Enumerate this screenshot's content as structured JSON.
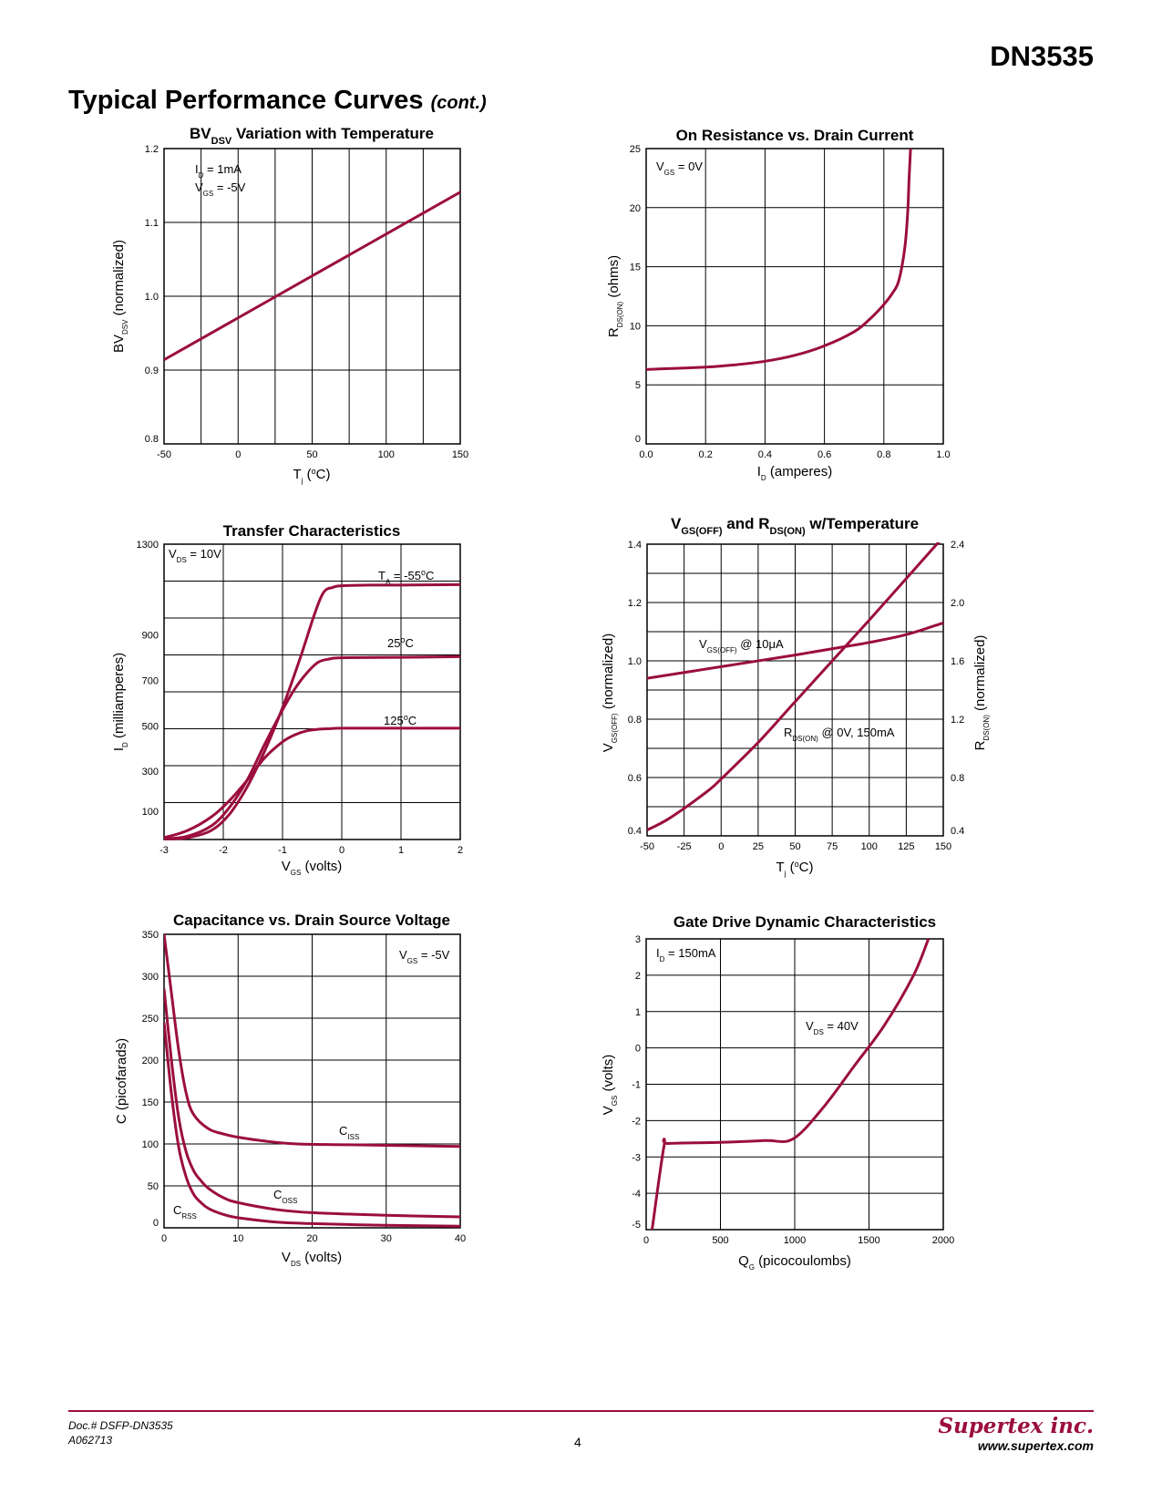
{
  "header": {
    "part_number": "DN3535",
    "section_title": "Typical Performance Curves",
    "section_suffix": "(cont.)"
  },
  "colors": {
    "curve": "#9b0e3e",
    "accent": "#9b0e3e"
  },
  "footer": {
    "doc_number": "Doc.# DSFP-DN3535",
    "revision": "A062713",
    "page": "4",
    "company": "Supertex inc.",
    "website": "www.supertex.com"
  },
  "chart_data": [
    {
      "type": "line",
      "title": "BVDSV Variation with Temperature",
      "xlabel": "Tj (°C)",
      "ylabel": "BVDSV (normalized)",
      "xlim": [
        -50,
        150
      ],
      "ylim": [
        0.8,
        1.2
      ],
      "xticks": [
        "-50",
        "0",
        "50",
        "100",
        "150"
      ],
      "yticks": [
        "0.8",
        "0.9",
        "1.0",
        "1.1",
        "1.2"
      ],
      "annotations": [
        "ID = 1mA",
        "VGS = -5V"
      ],
      "series": [
        {
          "x": [
            -50,
            150
          ],
          "y": [
            0.914,
            1.141
          ]
        }
      ]
    },
    {
      "type": "line",
      "title": "On Resistance vs. Drain Current",
      "xlabel": "ID (amperes)",
      "ylabel": "RDS(ON) (ohms)",
      "xlim": [
        0,
        1.0
      ],
      "ylim": [
        0,
        25
      ],
      "xticks": [
        "0.0",
        "0.2",
        "0.4",
        "0.6",
        "0.8",
        "1.0"
      ],
      "yticks": [
        "0",
        "5",
        "10",
        "15",
        "20",
        "25"
      ],
      "annotations": [
        "VGS = 0V"
      ],
      "series": [
        {
          "x": [
            0,
            0.1,
            0.2,
            0.3,
            0.4,
            0.5,
            0.6,
            0.7,
            0.75,
            0.8,
            0.83,
            0.85,
            0.87,
            0.88,
            0.885,
            0.89
          ],
          "y": [
            6.3,
            6.4,
            6.5,
            6.7,
            7.0,
            7.5,
            8.3,
            9.5,
            10.5,
            11.8,
            12.8,
            13.8,
            16.5,
            19.5,
            22.5,
            25
          ]
        }
      ]
    },
    {
      "type": "line",
      "title": "Transfer Characteristics",
      "xlabel": "VGS (volts)",
      "ylabel": "ID (milliamperes)",
      "xlim": [
        -3,
        2
      ],
      "ylim": [
        0,
        1300
      ],
      "xticks": [
        "-3",
        "-2",
        "-1",
        "0",
        "1",
        "2"
      ],
      "yticks": [
        "100",
        "300",
        "500",
        "700",
        "900",
        "1300"
      ],
      "annotations": [
        "VDS = 10V",
        "TA = -55°C",
        "25°C",
        "125°C"
      ],
      "series": [
        {
          "name": "TA = -55°C",
          "x": [
            -3,
            -2.6,
            -2.2,
            -1.9,
            -1.6,
            -1.3,
            -1.0,
            -0.7,
            -0.45,
            -0.3,
            -0.15,
            0,
            0.5,
            1,
            2
          ],
          "y": [
            2,
            8,
            40,
            110,
            230,
            390,
            580,
            800,
            1000,
            1090,
            1110,
            1117,
            1120,
            1120,
            1122
          ]
        },
        {
          "name": "25°C",
          "x": [
            -3,
            -2.6,
            -2.2,
            -1.9,
            -1.6,
            -1.3,
            -1.0,
            -0.8,
            -0.6,
            -0.4,
            -0.2,
            0,
            1,
            2
          ],
          "y": [
            2,
            15,
            60,
            140,
            260,
            420,
            570,
            660,
            730,
            780,
            795,
            800,
            802,
            805
          ]
        },
        {
          "name": "125°C",
          "x": [
            -3,
            -2.6,
            -2.2,
            -1.9,
            -1.6,
            -1.3,
            -1.0,
            -0.8,
            -0.6,
            -0.4,
            -0.2,
            0,
            1,
            2
          ],
          "y": [
            8,
            40,
            100,
            170,
            260,
            360,
            430,
            460,
            478,
            485,
            488,
            490,
            490,
            490
          ]
        }
      ]
    },
    {
      "type": "line",
      "title": "VGS(OFF) and RDS(ON) w/Temperature",
      "xlabel": "Tj (°C)",
      "ylabel": "VGS(OFF) (normalized)",
      "ylabel_right": "RDS(ON) (normalized)",
      "xlim": [
        -50,
        150
      ],
      "ylim": [
        0.4,
        1.4
      ],
      "ylim_right": [
        0.4,
        2.4
      ],
      "xticks": [
        "-50",
        "-25",
        "0",
        "25",
        "50",
        "75",
        "100",
        "125",
        "150"
      ],
      "yticks": [
        "0.4",
        "0.6",
        "0.8",
        "1.0",
        "1.2",
        "1.4"
      ],
      "yticks_right": [
        "0.4",
        "0.8",
        "1.2",
        "1.6",
        "2.0",
        "2.4"
      ],
      "annotations": [
        "VGS(OFF) @ 10μA",
        "RDS(ON) @ 0V, 150mA"
      ],
      "series": [
        {
          "name": "VGS(OFF) @ 10μA",
          "axis": "left",
          "x": [
            -50,
            0,
            50,
            85,
            100,
            125,
            150
          ],
          "y": [
            0.94,
            0.98,
            1.02,
            1.05,
            1.063,
            1.09,
            1.13
          ]
        },
        {
          "name": "RDS(ON) @ 0V, 150mA",
          "axis": "right",
          "x": [
            -50,
            -35,
            -10,
            0,
            25,
            50,
            100,
            150
          ],
          "y": [
            0.44,
            0.52,
            0.7,
            0.79,
            1.04,
            1.32,
            1.88,
            2.45
          ]
        }
      ]
    },
    {
      "type": "line",
      "title": "Capacitance vs. Drain Source Voltage",
      "xlabel": "VDS (volts)",
      "ylabel": "C (picofarads)",
      "xlim": [
        0,
        40
      ],
      "ylim": [
        0,
        350
      ],
      "xticks": [
        "0",
        "10",
        "20",
        "30",
        "40"
      ],
      "yticks": [
        "0",
        "50",
        "100",
        "150",
        "200",
        "250",
        "300",
        "350"
      ],
      "annotations": [
        "VGS = -5V",
        "CISS",
        "COSS",
        "CRSS"
      ],
      "series": [
        {
          "name": "CISS",
          "x": [
            0,
            1,
            2,
            3,
            4,
            6,
            8,
            10,
            14,
            18,
            25,
            40
          ],
          "y": [
            350,
            280,
            210,
            160,
            135,
            118,
            112,
            108,
            103,
            100,
            99,
            97
          ]
        },
        {
          "name": "COSS",
          "x": [
            0,
            1,
            2,
            3,
            4,
            5,
            6,
            8,
            10,
            15,
            20,
            30,
            40
          ],
          "y": [
            285,
            200,
            130,
            90,
            68,
            56,
            47,
            36,
            30,
            22,
            18,
            15,
            13
          ]
        },
        {
          "name": "CRSS",
          "x": [
            0,
            1,
            2,
            3,
            4,
            5,
            6,
            8,
            10,
            15,
            20,
            30,
            40
          ],
          "y": [
            245,
            160,
            95,
            60,
            40,
            30,
            23,
            16,
            12,
            7,
            5,
            3,
            2
          ]
        }
      ]
    },
    {
      "type": "line",
      "title": "Gate Drive Dynamic Characteristics",
      "xlabel": "QG (picocoulombs)",
      "ylabel": "VGS (volts)",
      "xlim": [
        0,
        2000
      ],
      "ylim": [
        -5,
        3
      ],
      "xticks": [
        "0",
        "500",
        "1000",
        "1500",
        "2000"
      ],
      "yticks": [
        "-5",
        "-4",
        "-3",
        "-2",
        "-1",
        "0",
        "1",
        "2",
        "3"
      ],
      "annotations": [
        "ID = 150mA",
        "VDS = 40V"
      ],
      "series": [
        {
          "name": "VDS = 40V",
          "x": [
            40,
            120,
            150,
            500,
            800,
            990,
            1200,
            1400,
            1600,
            1800,
            1900
          ],
          "y": [
            -5,
            -2.7,
            -2.63,
            -2.6,
            -2.55,
            -2.5,
            -1.6,
            -0.5,
            0.6,
            2.0,
            3.0
          ]
        }
      ]
    }
  ]
}
